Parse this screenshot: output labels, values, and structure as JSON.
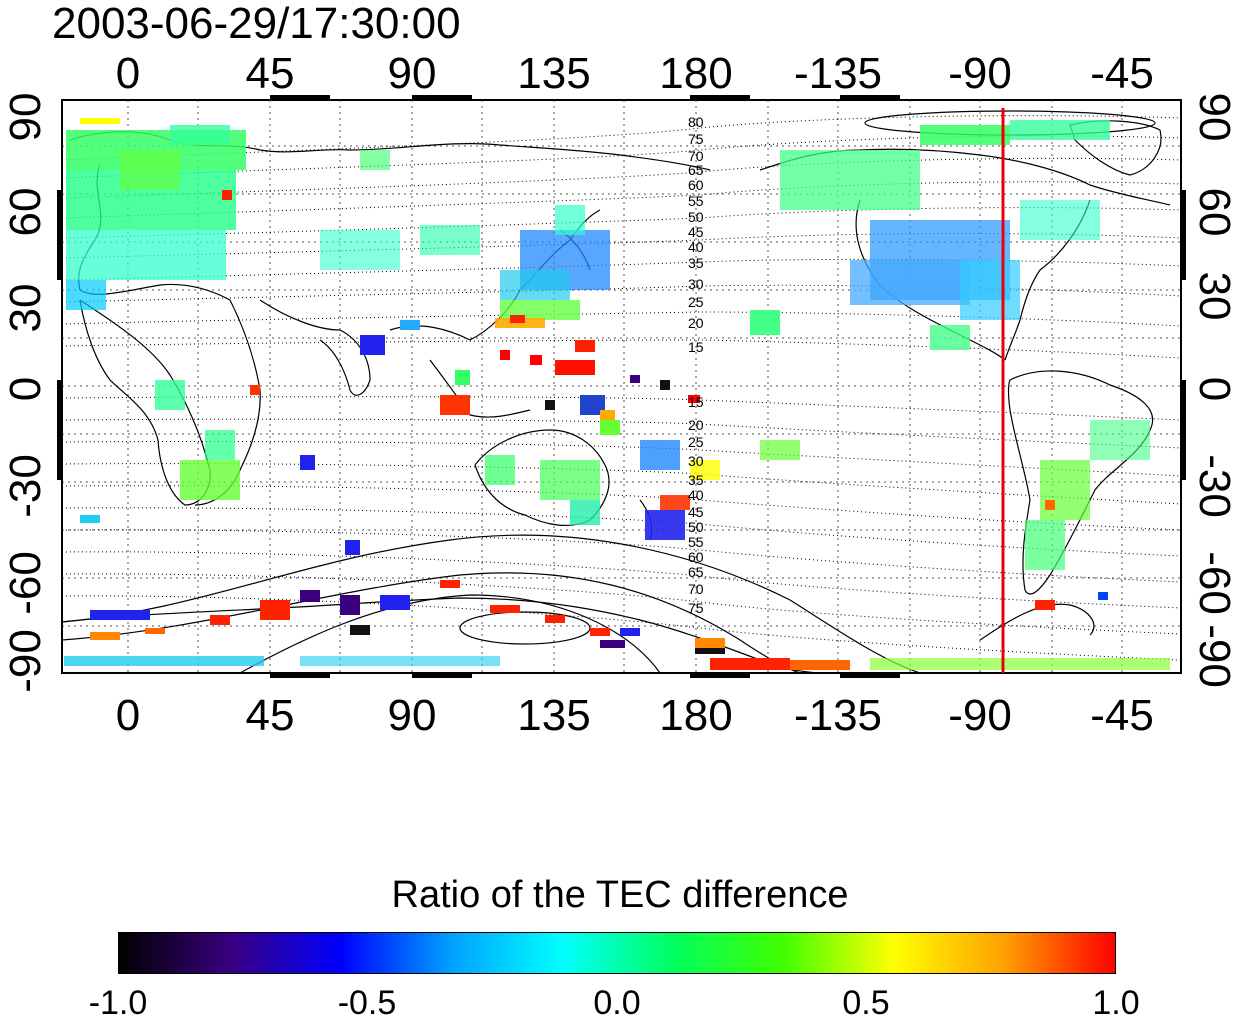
{
  "title": "2003-06-29/17:30:00",
  "map": {
    "top_ticks": [
      "0",
      "45",
      "90",
      "135",
      "180",
      "-135",
      "-90",
      "-45"
    ],
    "bottom_ticks": [
      "0",
      "45",
      "90",
      "135",
      "180",
      "-135",
      "-90",
      "-45"
    ],
    "left_ticks": [
      "90",
      "60",
      "30",
      "0",
      "-30",
      "-60",
      "-90"
    ],
    "right_ticks": [
      "90",
      "60",
      "30",
      "0",
      "-30",
      "-60",
      "-90"
    ],
    "contour_labels_north": [
      "80",
      "75",
      "70",
      "65",
      "60",
      "55",
      "50",
      "45",
      "40",
      "35",
      "30",
      "25",
      "20",
      "15"
    ],
    "contour_labels_south": [
      "15",
      "20",
      "25",
      "30",
      "35",
      "40",
      "45",
      "50",
      "55",
      "60",
      "65",
      "70",
      "75"
    ],
    "marker_line_color": "#e8000b",
    "marker_longitude": -82
  },
  "colorbar": {
    "title": "Ratio of the TEC difference",
    "ticks": [
      "-1.0",
      "-0.5",
      "0.0",
      "0.5",
      "1.0"
    ],
    "range": [
      -1.0,
      1.0
    ],
    "colors": [
      "#000000",
      "#3a0080",
      "#0000ff",
      "#00a0ff",
      "#00ffff",
      "#00ff60",
      "#40ff00",
      "#ffff00",
      "#ffa000",
      "#ff0000"
    ]
  }
}
